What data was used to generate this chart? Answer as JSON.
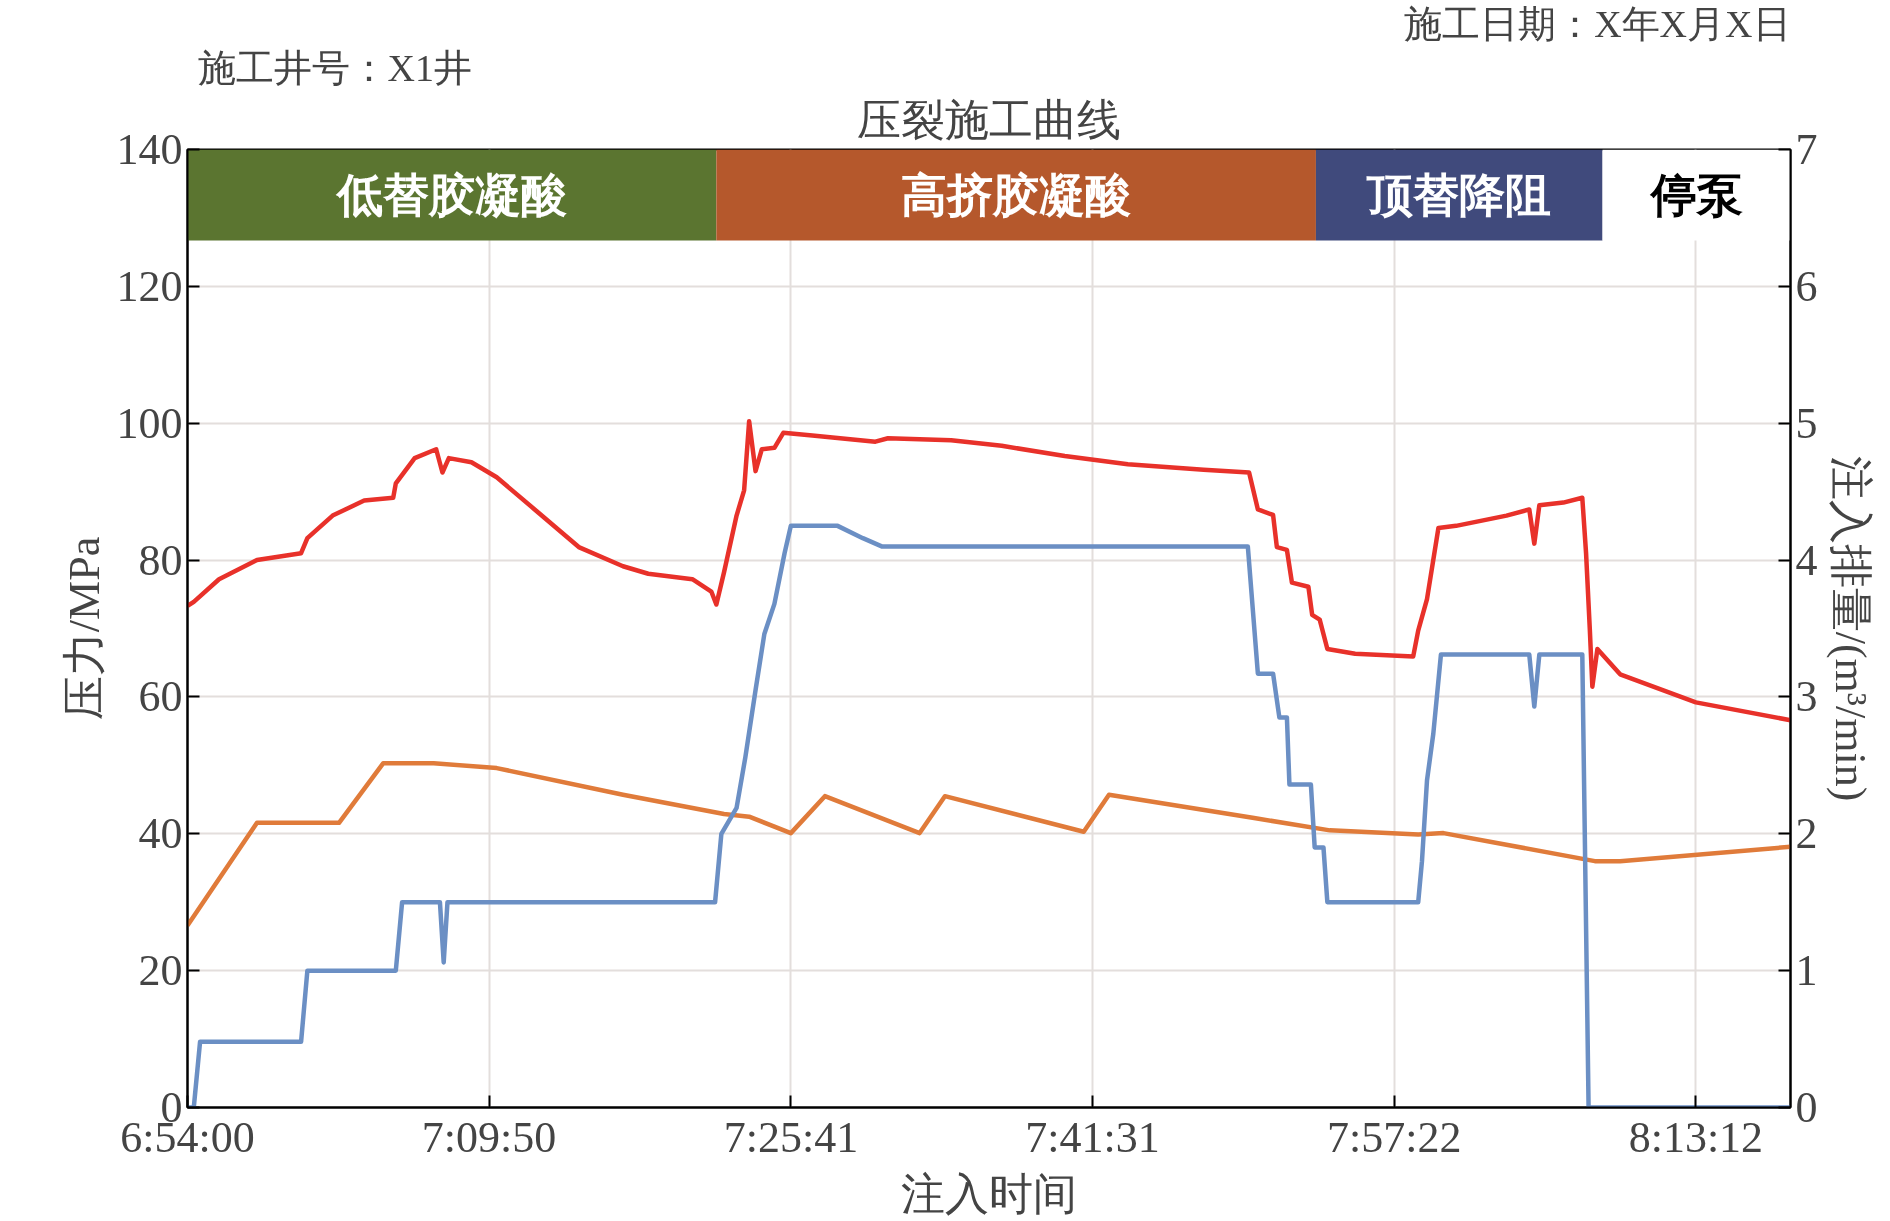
{
  "chart_data": {
    "type": "line",
    "title": "压裂施工曲线",
    "annotations": [
      "施工井号：X1井",
      "施工日期：X年X月X日"
    ],
    "xlabel": "注入时间",
    "ylabel": "压力/MPa",
    "y2label": "注入排量/(m³/min)",
    "xlim": [
      6.9,
      8.3028
    ],
    "xticks": [
      {
        "value": 6.9,
        "label": "6:54:00"
      },
      {
        "value": 7.16389,
        "label": "7:09:50"
      },
      {
        "value": 7.42806,
        "label": "7:25:41"
      },
      {
        "value": 7.69194,
        "label": "7:41:31"
      },
      {
        "value": 7.95611,
        "label": "7:57:22"
      },
      {
        "value": 8.22,
        "label": "8:13:12"
      }
    ],
    "ylim": [
      0,
      140
    ],
    "yticks": [
      0,
      20,
      40,
      60,
      80,
      100,
      120,
      140
    ],
    "y2lim": [
      0,
      7
    ],
    "y2ticks": [
      0,
      1,
      2,
      3,
      4,
      5,
      6,
      7
    ],
    "grid": true,
    "line_style": "solid",
    "bands": [
      {
        "axis": "x",
        "from": 6.9,
        "to": 7.3628,
        "label": "低替胶凝酸",
        "color": "#5b7530"
      },
      {
        "axis": "x",
        "from": 7.3628,
        "to": 7.8875,
        "label": "高挤胶凝酸",
        "color": "#b5582c"
      },
      {
        "axis": "x",
        "from": 7.8875,
        "to": 8.1383,
        "label": "顶替降阻",
        "color": "#404a7c"
      },
      {
        "axis": "x",
        "from": 8.1383,
        "to": 8.3028,
        "label": "停泵",
        "color": "#ffffff"
      }
    ],
    "series": [
      {
        "color": "#e8312a",
        "axis": "y",
        "x": [
          6.9,
          6.9055,
          6.9276,
          6.9608,
          6.9994,
          7.0049,
          7.027,
          7.0546,
          7.08,
          7.0823,
          7.0988,
          7.1176,
          7.1231,
          7.1287,
          7.1485,
          7.1706,
          7.2038,
          7.2424,
          7.2811,
          7.3032,
          7.3418,
          7.3584,
          7.3628,
          7.3695,
          7.3805,
          7.3871,
          7.3915,
          7.3971,
          7.4026,
          7.4136,
          7.4214,
          7.4468,
          7.502,
          7.513,
          7.5683,
          7.6125,
          7.6677,
          7.7229,
          7.7892,
          7.829,
          7.8367,
          7.85,
          7.8533,
          7.8621,
          7.8665,
          7.8809,
          7.8842,
          7.8908,
          7.8975,
          7.9218,
          7.9726,
          7.977,
          7.9847,
          7.9947,
          8.0101,
          8.0543,
          8.0742,
          8.0786,
          8.083,
          8.104,
          8.1206,
          8.1239,
          8.1272,
          8.1294,
          8.1338,
          8.1537,
          8.22,
          8.3028
        ],
        "values": [
          73.3,
          73.9,
          77.2,
          80,
          81,
          83.2,
          86.5,
          88.7,
          89.1,
          91.2,
          94.9,
          96.2,
          92.8,
          94.9,
          94.3,
          92.1,
          87.4,
          81.9,
          79.1,
          78,
          77.2,
          75.4,
          73.5,
          78.2,
          86.5,
          90.2,
          100.3,
          93,
          96.2,
          96.4,
          98.6,
          98.2,
          97.3,
          97.8,
          97.5,
          96.7,
          95.2,
          94,
          93.2,
          92.8,
          87.4,
          86.6,
          81.9,
          81.5,
          76.7,
          76.1,
          72,
          71.3,
          67,
          66.3,
          65.9,
          69.7,
          74.3,
          84.7,
          85,
          86.5,
          87.4,
          82.4,
          88,
          88.4,
          89.1,
          81,
          69.8,
          61.5,
          67,
          63.3,
          59.2,
          56.6
        ]
      },
      {
        "color": "#e07b3a",
        "axis": "y",
        "x": [
          6.9,
          6.9608,
          7.0326,
          7.0712,
          7.1154,
          7.1706,
          7.2811,
          7.3695,
          7.3915,
          7.428,
          7.4578,
          7.5407,
          7.5628,
          7.6843,
          7.7064,
          7.8334,
          7.8997,
          7.977,
          7.9991,
          8.1316,
          8.1537,
          8.3028
        ],
        "values": [
          26.6,
          41.6,
          41.6,
          50.3,
          50.3,
          49.6,
          45.7,
          42.9,
          42.5,
          40.1,
          45.5,
          40.1,
          45.5,
          40.3,
          45.7,
          42.3,
          40.5,
          39.9,
          40.1,
          36,
          36,
          38.1
        ]
      },
      {
        "color": "#6b8fc4",
        "axis": "y2",
        "x": [
          6.9,
          6.9055,
          6.911,
          6.9994,
          7.0049,
          7.0823,
          7.0878,
          7.1209,
          7.1242,
          7.1275,
          7.3617,
          7.3672,
          7.3805,
          7.3882,
          7.3971,
          7.4048,
          7.4136,
          7.4225,
          7.428,
          7.4689,
          7.491,
          7.5075,
          7.5683,
          7.8279,
          7.8367,
          7.85,
          7.8555,
          7.8621,
          7.8643,
          7.8831,
          7.8864,
          7.8941,
          7.8975,
          7.977,
          7.9803,
          7.9847,
          7.9902,
          7.9969,
          8.0742,
          8.0786,
          8.083,
          8.1206,
          8.1261,
          8.3028
        ],
        "values": [
          0,
          0,
          0.48,
          0.48,
          1,
          1,
          1.5,
          1.5,
          1.06,
          1.5,
          1.5,
          2,
          2.19,
          2.56,
          3.05,
          3.46,
          3.68,
          4.05,
          4.25,
          4.25,
          4.16,
          4.1,
          4.1,
          4.1,
          3.17,
          3.17,
          2.85,
          2.85,
          2.36,
          2.36,
          1.9,
          1.9,
          1.5,
          1.5,
          1.8,
          2.39,
          2.73,
          3.31,
          3.31,
          2.93,
          3.31,
          3.31,
          0,
          0
        ]
      }
    ]
  }
}
